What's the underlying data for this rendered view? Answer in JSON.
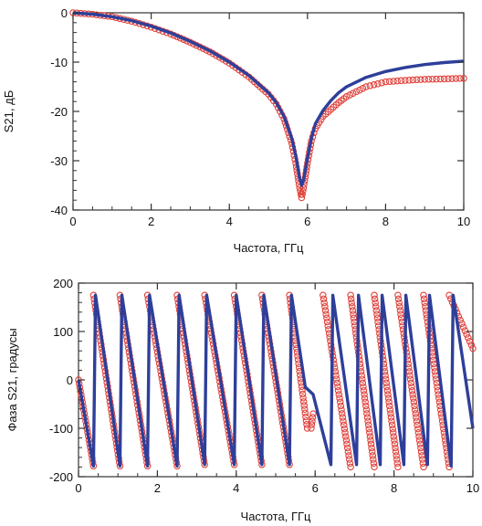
{
  "chart_data": [
    {
      "type": "line",
      "xlabel": "Частота, ГГц",
      "ylabel": "S21, дБ",
      "xlim": [
        0,
        10
      ],
      "ylim": [
        -40,
        0
      ],
      "xticks": [
        "0",
        "2",
        "4",
        "6",
        "8",
        "10"
      ],
      "yticks": [
        "0",
        "-10",
        "-20",
        "-30",
        "-40"
      ],
      "grid": false,
      "series": [
        {
          "style": "markers",
          "color": "#e0403a",
          "x": [
            0,
            0.5,
            1,
            1.5,
            2,
            2.5,
            3,
            3.5,
            4,
            4.5,
            5,
            5.2,
            5.4,
            5.6,
            5.7,
            5.8,
            5.85,
            5.9,
            6,
            6.1,
            6.2,
            6.4,
            6.6,
            6.8,
            7,
            7.5,
            8,
            8.5,
            9,
            9.5,
            10
          ],
          "y": [
            0,
            -0.3,
            -0.8,
            -1.7,
            -2.9,
            -4.3,
            -6,
            -7.9,
            -10.2,
            -13,
            -16.5,
            -18.5,
            -21.5,
            -26.5,
            -30.5,
            -35.5,
            -37.5,
            -35.5,
            -30.5,
            -26,
            -23.5,
            -21,
            -19.6,
            -18.2,
            -17,
            -15,
            -14,
            -13.7,
            -13.5,
            -13.4,
            -13.3
          ]
        },
        {
          "style": "line",
          "color": "#2e3f9a",
          "x": [
            0,
            0.5,
            1,
            1.5,
            2,
            2.5,
            3,
            3.5,
            4,
            4.5,
            5,
            5.2,
            5.4,
            5.6,
            5.7,
            5.8,
            5.85,
            5.9,
            6,
            6.1,
            6.2,
            6.4,
            6.6,
            6.8,
            7,
            7.5,
            8,
            8.5,
            9,
            9.5,
            10
          ],
          "y": [
            0,
            -0.3,
            -0.8,
            -1.6,
            -2.7,
            -4.1,
            -5.8,
            -7.7,
            -10,
            -12.7,
            -16.2,
            -18.2,
            -21,
            -25.5,
            -29,
            -33.5,
            -35,
            -34,
            -29.5,
            -25.5,
            -22.5,
            -19.8,
            -17.8,
            -16.2,
            -15,
            -13.1,
            -11.9,
            -11.1,
            -10.5,
            -10.1,
            -9.8
          ]
        }
      ]
    },
    {
      "type": "line",
      "xlabel": "Частота, ГГц",
      "ylabel": "Фаза S21, градусы",
      "xlim": [
        0,
        10
      ],
      "ylim": [
        -200,
        200
      ],
      "xticks": [
        "0",
        "2",
        "4",
        "6",
        "8",
        "10"
      ],
      "yticks": [
        "200",
        "100",
        "0",
        "-100",
        "-200"
      ],
      "grid": false,
      "series": [
        {
          "style": "markers",
          "color": "#e0403a",
          "segments": [
            [
              [
                0,
                0
              ],
              [
                0.38,
                -178
              ]
            ],
            [
              [
                0.38,
                175
              ],
              [
                1.05,
                -178
              ]
            ],
            [
              [
                1.05,
                175
              ],
              [
                1.75,
                -178
              ]
            ],
            [
              [
                1.75,
                175
              ],
              [
                2.5,
                -178
              ]
            ],
            [
              [
                2.5,
                175
              ],
              [
                3.2,
                -175
              ]
            ],
            [
              [
                3.2,
                175
              ],
              [
                3.95,
                -175
              ]
            ],
            [
              [
                3.95,
                175
              ],
              [
                4.65,
                -175
              ]
            ],
            [
              [
                4.65,
                175
              ],
              [
                5.35,
                -175
              ]
            ],
            [
              [
                5.35,
                175
              ],
              [
                5.8,
                -100
              ],
              [
                5.9,
                -100
              ],
              [
                5.95,
                -70
              ]
            ],
            [
              [
                6.2,
                175
              ],
              [
                6.9,
                -180
              ]
            ],
            [
              [
                6.9,
                175
              ],
              [
                7.5,
                -180
              ]
            ],
            [
              [
                7.5,
                175
              ],
              [
                8.1,
                -180
              ]
            ],
            [
              [
                8.1,
                175
              ],
              [
                8.75,
                -180
              ]
            ],
            [
              [
                8.75,
                175
              ],
              [
                9.4,
                -180
              ]
            ],
            [
              [
                9.4,
                175
              ],
              [
                10,
                65
              ]
            ]
          ]
        },
        {
          "style": "line",
          "color": "#2e3f9a",
          "segments": [
            [
              [
                0,
                0
              ],
              [
                0.38,
                -178
              ],
              [
                0.43,
                175
              ],
              [
                1.05,
                -178
              ],
              [
                1.1,
                175
              ],
              [
                1.75,
                -178
              ],
              [
                1.8,
                175
              ],
              [
                2.5,
                -178
              ],
              [
                2.55,
                175
              ],
              [
                3.2,
                -175
              ],
              [
                3.25,
                175
              ],
              [
                3.95,
                -175
              ],
              [
                4.0,
                175
              ],
              [
                4.65,
                -175
              ],
              [
                4.7,
                175
              ],
              [
                5.35,
                -175
              ],
              [
                5.4,
                175
              ],
              [
                5.75,
                -15
              ],
              [
                5.95,
                -30
              ],
              [
                6.4,
                -175
              ],
              [
                6.45,
                175
              ],
              [
                7.05,
                -175
              ],
              [
                7.1,
                175
              ],
              [
                7.65,
                -175
              ],
              [
                7.7,
                175
              ],
              [
                8.25,
                -175
              ],
              [
                8.3,
                175
              ],
              [
                8.85,
                -175
              ],
              [
                8.9,
                175
              ],
              [
                9.45,
                -178
              ],
              [
                9.5,
                175
              ],
              [
                10,
                -100
              ]
            ]
          ]
        }
      ]
    }
  ]
}
